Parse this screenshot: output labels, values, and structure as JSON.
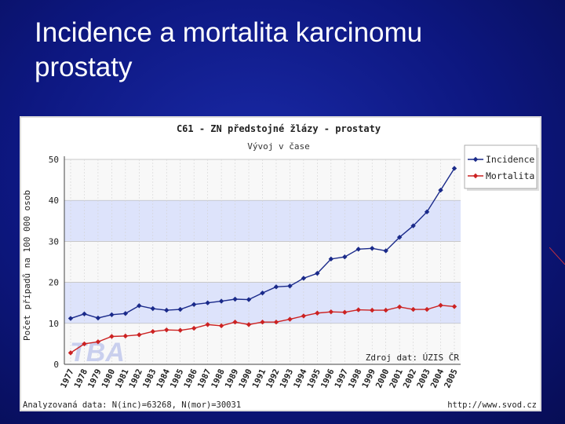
{
  "slide": {
    "title_line1": "Incidence a mortalita karcinomu",
    "title_line2": "prostaty"
  },
  "colors": {
    "background": "#0d1780",
    "incidence": "#1a2a8a",
    "mortalita": "#cc2222",
    "band": "#dde3fb",
    "watermark": "#c9cfee"
  },
  "chart_data": {
    "type": "line",
    "title": "C61 - ZN předstojné žlázy - prostaty",
    "subtitle": "Vývoj v čase",
    "ylabel": "Počet případů na 100 000 osob",
    "xlabel": "",
    "ylim": [
      0,
      50
    ],
    "yticks": [
      0,
      10,
      20,
      30,
      40,
      50
    ],
    "grid": true,
    "legend_position": "top-right",
    "source_note": "Zdroj dat: ÚZIS ČR",
    "footer_left": "Analyzovaná data: N(inc)=63268, N(mor)=30031",
    "footer_right": "http://www.svod.cz",
    "watermark": "TBA",
    "x": [
      "1977",
      "1978",
      "1979",
      "1980",
      "1981",
      "1982",
      "1983",
      "1984",
      "1985",
      "1986",
      "1987",
      "1988",
      "1989",
      "1990",
      "1991",
      "1992",
      "1993",
      "1994",
      "1995",
      "1996",
      "1997",
      "1998",
      "1999",
      "2000",
      "2001",
      "2002",
      "2003",
      "2004",
      "2005"
    ],
    "series": [
      {
        "name": "Incidence",
        "color": "#1a2a8a",
        "marker": "diamond",
        "values": [
          11.2,
          12.3,
          11.3,
          12.1,
          12.4,
          14.3,
          13.6,
          13.2,
          13.4,
          14.6,
          15.0,
          15.4,
          15.9,
          15.8,
          17.4,
          18.9,
          19.1,
          21.0,
          22.2,
          25.7,
          26.2,
          28.1,
          28.3,
          27.7,
          31.0,
          33.8,
          37.2,
          42.5,
          47.8
        ]
      },
      {
        "name": "Mortalita",
        "color": "#cc2222",
        "marker": "diamond",
        "values": [
          2.8,
          5.0,
          5.5,
          6.8,
          6.9,
          7.2,
          8.0,
          8.4,
          8.3,
          8.8,
          9.7,
          9.4,
          10.3,
          9.7,
          10.3,
          10.3,
          11.0,
          11.8,
          12.5,
          12.8,
          12.7,
          13.3,
          13.2,
          13.2,
          14.0,
          13.4,
          13.4,
          14.4,
          14.1
        ]
      }
    ]
  }
}
